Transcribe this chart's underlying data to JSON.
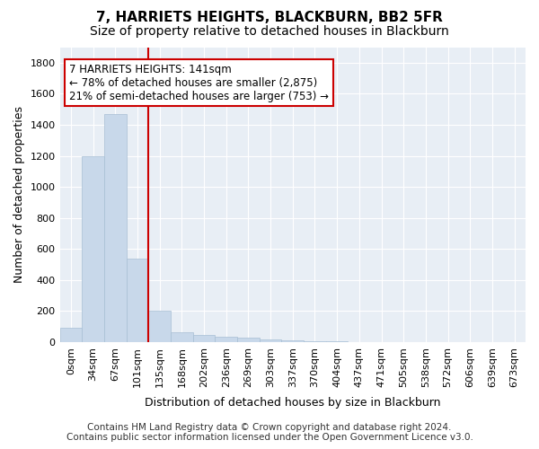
{
  "title": "7, HARRIETS HEIGHTS, BLACKBURN, BB2 5FR",
  "subtitle": "Size of property relative to detached houses in Blackburn",
  "xlabel": "Distribution of detached houses by size in Blackburn",
  "ylabel": "Number of detached properties",
  "bar_color": "#c8d8ea",
  "bar_edge_color": "#a8bfd4",
  "categories": [
    "0sqm",
    "34sqm",
    "67sqm",
    "101sqm",
    "135sqm",
    "168sqm",
    "202sqm",
    "236sqm",
    "269sqm",
    "303sqm",
    "337sqm",
    "370sqm",
    "404sqm",
    "437sqm",
    "471sqm",
    "505sqm",
    "538sqm",
    "572sqm",
    "606sqm",
    "639sqm",
    "673sqm"
  ],
  "values": [
    90,
    1200,
    1470,
    540,
    205,
    65,
    45,
    35,
    28,
    15,
    10,
    8,
    5,
    3,
    2,
    1,
    0,
    0,
    0,
    0,
    0
  ],
  "ylim": [
    0,
    1900
  ],
  "yticks": [
    0,
    200,
    400,
    600,
    800,
    1000,
    1200,
    1400,
    1600,
    1800
  ],
  "vline_x": 3.5,
  "vline_color": "#cc0000",
  "ann_line1": "7 HARRIETS HEIGHTS: 141sqm",
  "ann_line2": "← 78% of detached houses are smaller (2,875)",
  "ann_line3": "21% of semi-detached houses are larger (753) →",
  "annotation_box_color": "#ffffff",
  "annotation_box_edge": "#cc0000",
  "footer_line1": "Contains HM Land Registry data © Crown copyright and database right 2024.",
  "footer_line2": "Contains public sector information licensed under the Open Government Licence v3.0.",
  "fig_bg_color": "#ffffff",
  "ax_bg_color": "#e8eef5",
  "grid_color": "#ffffff",
  "title_fontsize": 11,
  "subtitle_fontsize": 10,
  "axis_label_fontsize": 9,
  "tick_fontsize": 8,
  "annotation_fontsize": 8.5,
  "footer_fontsize": 7.5
}
